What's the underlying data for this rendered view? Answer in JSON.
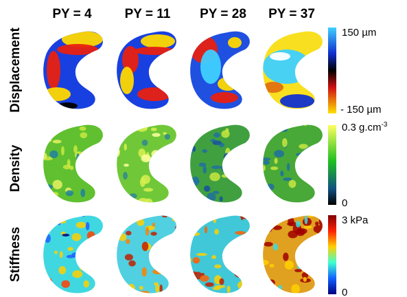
{
  "columns": [
    "PY = 4",
    "PY = 11",
    "PY = 28",
    "PY = 37"
  ],
  "rows": [
    {
      "label": "Displacement",
      "scale_max": "150 µm",
      "scale_min": "- 150 µm"
    },
    {
      "label": "Density",
      "scale_max": "0.3 g.cm",
      "scale_max_sup": "-3",
      "scale_min": "0"
    },
    {
      "label": "Stiffness",
      "scale_max": "3 kPa",
      "scale_min": "0"
    }
  ]
}
